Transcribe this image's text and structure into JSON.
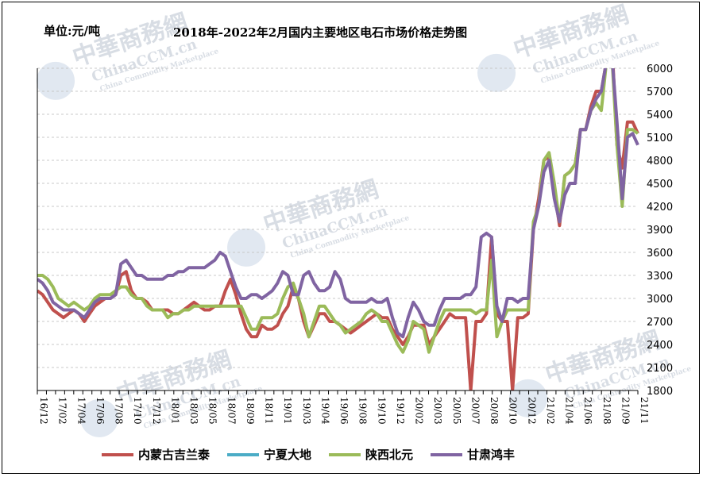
{
  "unit": "单位:元/吨",
  "title": "2018年-2022年2月国内主要地区电石市场价格走势图",
  "watermark": {
    "cn": "中華商務網",
    "en": "ChinaCCM.cn",
    "sub": "China Commodity Marketplace"
  },
  "colors": {
    "series_1": "#c0504d",
    "series_2": "#4bacc6",
    "series_3": "#9bbb59",
    "series_4": "#8064a2",
    "axis": "#000000",
    "grid": "#c8c8c8"
  },
  "chart_data": {
    "type": "line",
    "ylim": [
      1800,
      6000
    ],
    "yticks": [
      1800,
      2100,
      2400,
      2700,
      3000,
      3300,
      3600,
      3900,
      4200,
      4500,
      4800,
      5100,
      5400,
      5700,
      6000
    ],
    "grid": "horizontal dashed",
    "legend_position": "bottom",
    "x_tick_labels": [
      "16/12",
      "17/02",
      "17/04",
      "17/06",
      "17/08",
      "17/10",
      "17/12",
      "18/01",
      "18/03",
      "18/05",
      "18/07",
      "18/09",
      "18/11",
      "19/01",
      "19/03",
      "19/04",
      "19/06",
      "19/08",
      "19/10",
      "19/12",
      "20/02",
      "20/03",
      "20/05",
      "20/07",
      "20/08",
      "20/10",
      "20/12",
      "21/02",
      "21/04",
      "21/06",
      "21/08",
      "21/09",
      "21/11"
    ],
    "series": [
      {
        "name": "内蒙古吉兰泰",
        "color_key": "series_1",
        "values": [
          3100,
          3050,
          2950,
          2850,
          2800,
          2750,
          2800,
          2850,
          2800,
          2700,
          2800,
          2900,
          2950,
          3000,
          3000,
          3050,
          3300,
          3350,
          3100,
          3000,
          3000,
          2950,
          2850,
          2850,
          2850,
          2850,
          2800,
          2800,
          2850,
          2900,
          2950,
          2900,
          2850,
          2850,
          2900,
          2900,
          3100,
          3250,
          3050,
          2800,
          2600,
          2500,
          2500,
          2650,
          2600,
          2600,
          2650,
          2800,
          2900,
          3150,
          3000,
          2700,
          2500,
          2650,
          2800,
          2800,
          2700,
          2700,
          2650,
          2600,
          2550,
          2600,
          2650,
          2700,
          2750,
          2800,
          2750,
          2750,
          2600,
          2500,
          2400,
          2500,
          2650,
          2650,
          2650,
          2400,
          2500,
          2600,
          2700,
          2800,
          2750,
          2750,
          2750,
          1800,
          2700,
          2700,
          2800,
          3800,
          2800,
          2700,
          2700,
          1800,
          2750,
          2750,
          2800,
          3900,
          4300,
          4800,
          4850,
          4400,
          3950,
          4600,
          4650,
          4750,
          5200,
          5200,
          5500,
          5700,
          5700,
          6100,
          6400,
          5000,
          4700,
          5300,
          5300,
          5150
        ]
      },
      {
        "name": "宁夏大地",
        "color_key": "series_2",
        "values": []
      },
      {
        "name": "陕西北元",
        "color_key": "series_3",
        "values": [
          3300,
          3300,
          3250,
          3150,
          3000,
          2950,
          2900,
          2950,
          2900,
          2850,
          2900,
          3000,
          3050,
          3050,
          3050,
          3100,
          3150,
          3150,
          3050,
          3000,
          3000,
          2900,
          2850,
          2850,
          2850,
          2750,
          2800,
          2800,
          2850,
          2850,
          2900,
          2900,
          2900,
          2900,
          2900,
          2900,
          2900,
          2900,
          2900,
          2900,
          2750,
          2600,
          2600,
          2750,
          2750,
          2750,
          2800,
          3000,
          3150,
          3200,
          3000,
          2800,
          2500,
          2700,
          2900,
          2900,
          2800,
          2700,
          2650,
          2550,
          2600,
          2650,
          2700,
          2800,
          2850,
          2800,
          2700,
          2700,
          2550,
          2400,
          2300,
          2450,
          2700,
          2650,
          2600,
          2300,
          2500,
          2700,
          2850,
          2850,
          2850,
          2850,
          2850,
          2850,
          2800,
          2850,
          2850,
          3500,
          2500,
          2700,
          2850,
          2850,
          2850,
          2850,
          2850,
          4000,
          4200,
          4800,
          4900,
          4500,
          4000,
          4600,
          4650,
          4750,
          5200,
          5200,
          5450,
          5550,
          5450,
          6100,
          6200,
          5000,
          4200,
          5200,
          5200,
          5150
        ]
      },
      {
        "name": "甘肃鸿丰",
        "color_key": "series_4",
        "values": [
          3250,
          3200,
          3100,
          2950,
          2900,
          2850,
          2850,
          2850,
          2800,
          2750,
          2850,
          2950,
          3000,
          3000,
          3000,
          3050,
          3450,
          3500,
          3400,
          3300,
          3300,
          3250,
          3250,
          3250,
          3250,
          3300,
          3300,
          3350,
          3350,
          3400,
          3400,
          3400,
          3400,
          3450,
          3500,
          3600,
          3550,
          3350,
          3150,
          3000,
          3000,
          3050,
          3050,
          3000,
          3050,
          3100,
          3200,
          3350,
          3300,
          3050,
          3050,
          3300,
          3350,
          3200,
          3100,
          3100,
          3150,
          3350,
          3250,
          3000,
          2950,
          2950,
          2950,
          2950,
          3000,
          2950,
          2950,
          3000,
          2750,
          2550,
          2500,
          2750,
          2950,
          2850,
          2700,
          2650,
          2650,
          2850,
          3000,
          3000,
          3000,
          3000,
          3050,
          3050,
          3150,
          3800,
          3850,
          3800,
          2900,
          2700,
          3000,
          3000,
          2950,
          3000,
          3000,
          3900,
          4200,
          4650,
          4800,
          4300,
          4000,
          4350,
          4500,
          4500,
          5200,
          5200,
          5450,
          5600,
          5700,
          6100,
          6200,
          5300,
          4300,
          5100,
          5150,
          5000
        ]
      }
    ]
  },
  "legend_swatch_colors": [
    "#c0504d",
    "#4bacc6",
    "#9bbb59",
    "#8064a2"
  ]
}
